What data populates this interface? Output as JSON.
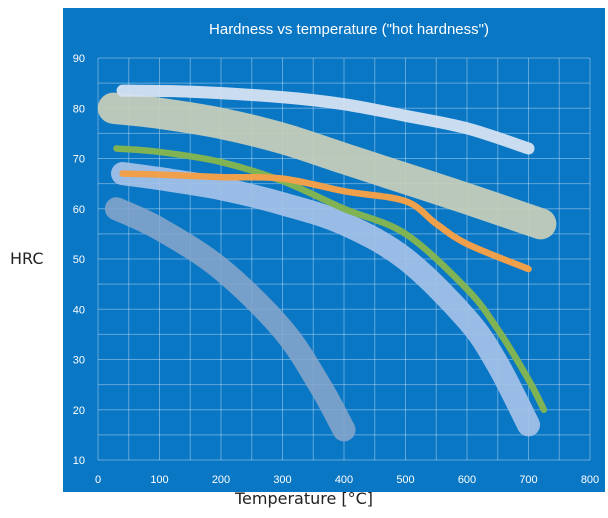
{
  "chart_data": {
    "type": "area",
    "title": "Hardness vs temperature (\"hot hardness\")",
    "xlabel": "Temperature [°C]",
    "ylabel": "HRC",
    "xlim": [
      0,
      800
    ],
    "ylim": [
      10,
      90
    ],
    "xticks": [
      "0",
      "100",
      "200",
      "300",
      "400",
      "500",
      "600",
      "700",
      "800"
    ],
    "yticks": [
      "10",
      "20",
      "30",
      "40",
      "50",
      "60",
      "70",
      "80",
      "90"
    ],
    "grid": true,
    "background_color": "#0a77c5",
    "series": [
      {
        "color": "#8aa6c9",
        "opacity": 0.85,
        "width_hrc": 4.6,
        "points": [
          [
            30,
            60
          ],
          [
            100,
            56
          ],
          [
            200,
            48
          ],
          [
            300,
            36
          ],
          [
            360,
            25
          ],
          [
            400,
            16
          ]
        ]
      },
      {
        "color": "#a7c3e8",
        "opacity": 0.9,
        "width_hrc": 4.6,
        "points": [
          [
            40,
            67
          ],
          [
            100,
            66
          ],
          [
            200,
            64
          ],
          [
            300,
            61
          ],
          [
            400,
            57
          ],
          [
            500,
            50
          ],
          [
            600,
            38
          ],
          [
            650,
            29
          ],
          [
            700,
            17
          ]
        ]
      },
      {
        "color": "#c9cfb9",
        "opacity": 0.92,
        "width_hrc": 6.2,
        "points": [
          [
            25,
            80
          ],
          [
            100,
            79
          ],
          [
            200,
            77
          ],
          [
            300,
            74
          ],
          [
            400,
            70
          ],
          [
            500,
            66
          ],
          [
            600,
            62
          ],
          [
            720,
            57
          ]
        ]
      },
      {
        "color": "#d5e1f1",
        "opacity": 0.95,
        "width_hrc": 2.4,
        "points": [
          [
            40,
            83.5
          ],
          [
            150,
            83.3
          ],
          [
            300,
            82.2
          ],
          [
            400,
            80.8
          ],
          [
            500,
            78.5
          ],
          [
            600,
            76
          ],
          [
            700,
            72
          ]
        ]
      },
      {
        "color": "#7fb354",
        "opacity": 1,
        "width_hrc": 1.3,
        "points": [
          [
            30,
            72
          ],
          [
            100,
            71.3
          ],
          [
            200,
            69.3
          ],
          [
            300,
            65.5
          ],
          [
            400,
            60
          ],
          [
            500,
            55
          ],
          [
            600,
            44
          ],
          [
            650,
            36
          ],
          [
            700,
            26
          ],
          [
            725,
            20
          ]
        ]
      },
      {
        "color": "#f0a04b",
        "opacity": 1,
        "width_hrc": 1.3,
        "points": [
          [
            40,
            67
          ],
          [
            100,
            66.8
          ],
          [
            200,
            66.3
          ],
          [
            300,
            66
          ],
          [
            400,
            63.5
          ],
          [
            500,
            61.5
          ],
          [
            550,
            57
          ],
          [
            600,
            53
          ],
          [
            700,
            48
          ]
        ]
      }
    ]
  }
}
